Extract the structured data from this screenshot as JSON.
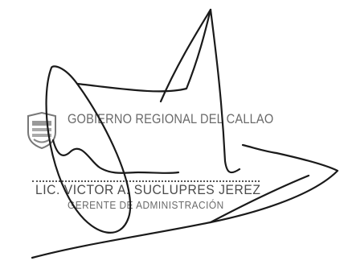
{
  "stamp": {
    "organization": "GOBIERNO REGIONAL DEL CALLAO",
    "signatory_name": "LIC. VICTOR A. SUCLUPRES JEREZ",
    "signatory_title": "GERENTE DE ADMINISTRACIÓN",
    "ink_color": "#1a1a1a",
    "stamp_text_color": "#666666"
  },
  "icons": {
    "seal": "regional-government-seal-icon"
  }
}
